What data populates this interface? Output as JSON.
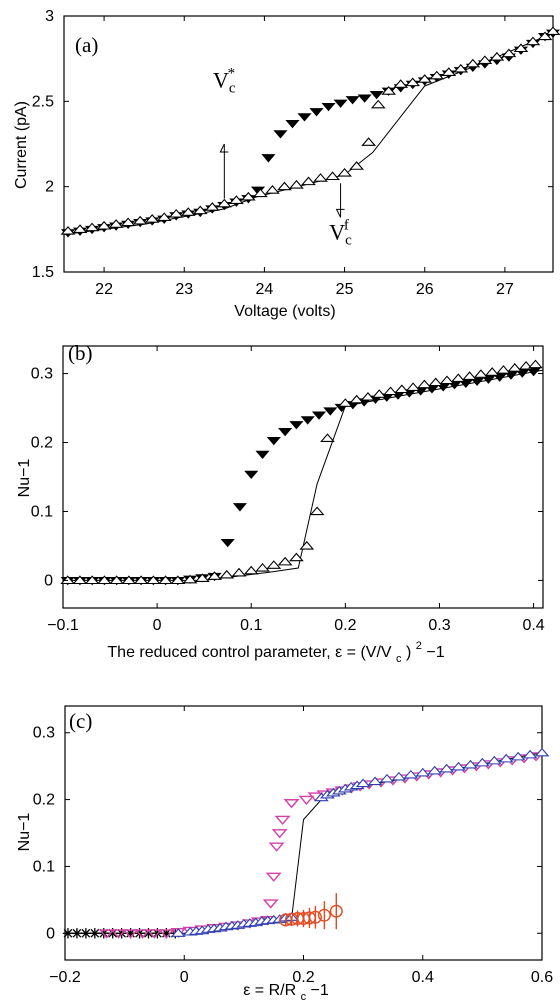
{
  "chart_data": [
    {
      "type": "scatter",
      "panel_label": "(a)",
      "xlabel": "Voltage (volts)",
      "ylabel": "Current (pA)",
      "xlim": [
        21.5,
        27.6
      ],
      "ylim": [
        1.5,
        3.0
      ],
      "x_ticks": [
        22,
        23,
        24,
        25,
        26,
        27
      ],
      "y_ticks": [
        1.5,
        2,
        2.5,
        3
      ],
      "x_tick_labels": [
        "22",
        "23",
        "24",
        "25",
        "26",
        "27"
      ],
      "y_tick_labels": [
        "1.5",
        "2",
        "2.5",
        "3"
      ],
      "grid": false,
      "annotations": [
        {
          "text_main": "V",
          "text_sub": "c",
          "text_sup": "*",
          "x": 23.5,
          "y": 2.58,
          "arrow_from": [
            23.5,
            1.93
          ],
          "arrow_to": [
            23.5,
            2.25
          ],
          "direction": "up"
        },
        {
          "text_main": "V",
          "text_sub": "c",
          "text_sup": "f",
          "x": 24.95,
          "y": 1.69,
          "arrow_from": [
            24.95,
            2.02
          ],
          "arrow_to": [
            24.95,
            1.82
          ],
          "direction": "down"
        }
      ],
      "series": [
        {
          "marker": "triangle-down-filled",
          "color": "#000000",
          "x": [
            21.55,
            21.7,
            21.85,
            22.0,
            22.15,
            22.3,
            22.45,
            22.6,
            22.75,
            22.9,
            23.05,
            23.2,
            23.35,
            23.5,
            23.65,
            23.8,
            23.92,
            24.05,
            24.2,
            24.35,
            24.5,
            24.65,
            24.8,
            24.95,
            25.1,
            25.25,
            25.4,
            25.55,
            25.7,
            25.85,
            26.0,
            26.15,
            26.3,
            26.45,
            26.6,
            26.75,
            26.9,
            27.05,
            27.2,
            27.35,
            27.5,
            27.6
          ],
          "y": [
            1.73,
            1.74,
            1.75,
            1.76,
            1.77,
            1.78,
            1.79,
            1.8,
            1.81,
            1.83,
            1.84,
            1.85,
            1.87,
            1.89,
            1.91,
            1.93,
            1.98,
            2.17,
            2.31,
            2.37,
            2.41,
            2.44,
            2.47,
            2.49,
            2.51,
            2.52,
            2.54,
            2.56,
            2.58,
            2.6,
            2.62,
            2.64,
            2.66,
            2.68,
            2.7,
            2.72,
            2.74,
            2.76,
            2.8,
            2.84,
            2.88,
            2.9
          ]
        },
        {
          "marker": "triangle-up-open",
          "color": "#000000",
          "x": [
            21.55,
            21.7,
            21.85,
            22.0,
            22.15,
            22.3,
            22.45,
            22.6,
            22.75,
            22.9,
            23.05,
            23.2,
            23.35,
            23.5,
            23.65,
            23.8,
            23.95,
            24.1,
            24.25,
            24.4,
            24.55,
            24.7,
            24.85,
            25.0,
            25.15,
            25.3,
            25.42,
            25.55,
            25.7,
            25.85,
            26.0,
            26.15,
            26.3,
            26.45,
            26.6,
            26.75,
            26.9,
            27.05,
            27.2,
            27.35,
            27.5,
            27.6
          ],
          "y": [
            1.74,
            1.75,
            1.76,
            1.77,
            1.78,
            1.79,
            1.8,
            1.81,
            1.82,
            1.84,
            1.85,
            1.86,
            1.88,
            1.9,
            1.92,
            1.94,
            1.96,
            1.98,
            2.0,
            2.01,
            2.03,
            2.05,
            2.06,
            2.08,
            2.12,
            2.26,
            2.48,
            2.56,
            2.6,
            2.61,
            2.63,
            2.65,
            2.67,
            2.69,
            2.72,
            2.74,
            2.76,
            2.78,
            2.81,
            2.85,
            2.88,
            2.91
          ]
        }
      ],
      "trend_line": {
        "x": [
          21.5,
          22.5,
          23.5,
          23.9,
          24.5,
          25.0,
          25.35,
          26.0,
          26.7,
          27.6
        ],
        "y": [
          1.72,
          1.78,
          1.87,
          1.94,
          2.01,
          2.07,
          2.2,
          2.59,
          2.72,
          2.9
        ]
      }
    },
    {
      "type": "scatter",
      "panel_label": "(b)",
      "xlabel_text": "The reduced control parameter, ε = (V/V",
      "xlabel_sub": "c",
      "xlabel_close": ")",
      "xlabel_sup": "2",
      "xlabel_tail": "−1",
      "ylabel": "Nu−1",
      "xlim": [
        -0.1,
        0.41
      ],
      "ylim": [
        -0.04,
        0.34
      ],
      "x_ticks": [
        -0.1,
        0,
        0.1,
        0.2,
        0.3,
        0.4
      ],
      "y_ticks": [
        0,
        0.1,
        0.2,
        0.3
      ],
      "x_tick_labels": [
        "−0.1",
        "0",
        "0.1",
        "0.2",
        "0.3",
        "0.4"
      ],
      "y_tick_labels": [
        "0",
        "0.1",
        "0.2",
        "0.3"
      ],
      "grid": false,
      "series": [
        {
          "marker": "triangle-down-filled",
          "color": "#000000",
          "x": [
            -0.095,
            -0.082,
            -0.069,
            -0.056,
            -0.043,
            -0.03,
            -0.017,
            -0.004,
            0.009,
            0.022,
            0.035,
            0.048,
            0.061,
            0.075,
            0.088,
            0.1,
            0.112,
            0.124,
            0.136,
            0.148,
            0.16,
            0.172,
            0.184,
            0.196,
            0.208,
            0.22,
            0.232,
            0.244,
            0.256,
            0.268,
            0.28,
            0.292,
            0.304,
            0.316,
            0.328,
            0.34,
            0.352,
            0.364,
            0.376,
            0.388,
            0.4
          ],
          "y": [
            0.0,
            0.0,
            0.0,
            0.0,
            0.0,
            0.0,
            0.0,
            0.0,
            0.0,
            0.0,
            0.002,
            0.004,
            0.006,
            0.055,
            0.107,
            0.154,
            0.183,
            0.203,
            0.216,
            0.226,
            0.233,
            0.24,
            0.246,
            0.251,
            0.255,
            0.259,
            0.263,
            0.266,
            0.269,
            0.272,
            0.275,
            0.278,
            0.281,
            0.284,
            0.286,
            0.289,
            0.292,
            0.295,
            0.298,
            0.301,
            0.303
          ]
        },
        {
          "marker": "triangle-up-open",
          "color": "#000000",
          "x": [
            -0.095,
            -0.082,
            -0.069,
            -0.056,
            -0.043,
            -0.03,
            -0.017,
            -0.004,
            0.009,
            0.022,
            0.035,
            0.048,
            0.061,
            0.074,
            0.087,
            0.1,
            0.112,
            0.124,
            0.136,
            0.148,
            0.159,
            0.17,
            0.181,
            0.2,
            0.212,
            0.224,
            0.236,
            0.248,
            0.26,
            0.272,
            0.284,
            0.296,
            0.308,
            0.32,
            0.332,
            0.344,
            0.356,
            0.368,
            0.38,
            0.392,
            0.402
          ],
          "y": [
            0.0,
            0.0,
            0.0,
            0.0,
            0.0,
            0.0,
            0.0,
            0.0,
            0.0,
            0.0,
            0.001,
            0.003,
            0.006,
            0.008,
            0.011,
            0.014,
            0.018,
            0.022,
            0.027,
            0.033,
            0.05,
            0.1,
            0.206,
            0.257,
            0.262,
            0.266,
            0.27,
            0.274,
            0.277,
            0.28,
            0.284,
            0.287,
            0.29,
            0.293,
            0.296,
            0.299,
            0.302,
            0.305,
            0.308,
            0.311,
            0.313
          ]
        }
      ],
      "trend_line": {
        "x": [
          -0.1,
          0.05,
          0.12,
          0.15,
          0.17,
          0.2,
          0.26,
          0.33,
          0.41
        ],
        "y": [
          0.0,
          0.0,
          0.012,
          0.018,
          0.14,
          0.253,
          0.268,
          0.285,
          0.305
        ]
      }
    },
    {
      "type": "scatter",
      "panel_label": "(c)",
      "xlabel_text": "ε = R/R",
      "xlabel_sub": "c",
      "xlabel_tail": " −1",
      "ylabel": "Nu−1",
      "xlim": [
        -0.2,
        0.6
      ],
      "ylim": [
        -0.04,
        0.34
      ],
      "x_ticks": [
        -0.2,
        0,
        0.2,
        0.4,
        0.6
      ],
      "y_ticks": [
        0,
        0.1,
        0.2,
        0.3
      ],
      "x_tick_labels": [
        "−0.2",
        "0",
        "0.2",
        "0.4",
        "0.6"
      ],
      "y_tick_labels": [
        "0",
        "0.1",
        "0.2",
        "0.3"
      ],
      "grid": false,
      "series": [
        {
          "marker": "asterisk",
          "color": "#000000",
          "x": [
            -0.195,
            -0.18,
            -0.165,
            -0.15,
            -0.135,
            -0.12,
            -0.105,
            -0.09,
            -0.075,
            -0.06,
            -0.045,
            -0.03,
            -0.015
          ],
          "y": [
            0.0,
            0.0,
            0.0,
            0.0,
            0.0,
            0.0,
            0.0,
            0.0,
            0.0,
            0.0,
            0.0,
            0.0,
            0.0
          ]
        },
        {
          "marker": "triangle-down-open",
          "color": "#d63fa6",
          "x": [
            -0.13,
            -0.11,
            -0.09,
            -0.07,
            -0.05,
            -0.03,
            -0.01,
            0.01,
            0.03,
            0.05,
            0.07,
            0.09,
            0.11,
            0.125,
            0.14,
            0.145,
            0.15,
            0.155,
            0.16,
            0.165,
            0.18,
            0.205,
            0.22,
            0.235,
            0.25,
            0.265,
            0.28,
            0.295,
            0.31,
            0.33,
            0.35,
            0.37,
            0.39,
            0.41,
            0.43,
            0.45,
            0.47,
            0.49,
            0.51,
            0.53,
            0.55,
            0.57,
            0.59
          ],
          "y": [
            0.0,
            0.0,
            0.0,
            0.0,
            0.0,
            0.0,
            0.002,
            0.004,
            0.006,
            0.008,
            0.01,
            0.012,
            0.015,
            0.018,
            0.02,
            0.045,
            0.085,
            0.13,
            0.15,
            0.17,
            0.195,
            0.2,
            0.205,
            0.208,
            0.211,
            0.214,
            0.217,
            0.22,
            0.223,
            0.226,
            0.229,
            0.232,
            0.235,
            0.238,
            0.241,
            0.244,
            0.247,
            0.25,
            0.253,
            0.256,
            0.259,
            0.262,
            0.265
          ]
        },
        {
          "marker": "triangle-up-open",
          "color": "#2f3fb0",
          "x": [
            -0.01,
            0.01,
            0.02,
            0.03,
            0.04,
            0.05,
            0.06,
            0.07,
            0.08,
            0.09,
            0.1,
            0.11,
            0.12,
            0.13,
            0.14,
            0.15,
            0.16,
            0.17,
            0.18,
            0.23,
            0.24,
            0.25,
            0.26,
            0.27,
            0.28,
            0.29,
            0.3,
            0.32,
            0.34,
            0.36,
            0.38,
            0.4,
            0.42,
            0.44,
            0.46,
            0.48,
            0.5,
            0.52,
            0.54,
            0.56,
            0.58,
            0.6
          ],
          "y": [
            0.0,
            0.002,
            0.003,
            0.004,
            0.006,
            0.007,
            0.008,
            0.01,
            0.011,
            0.012,
            0.014,
            0.015,
            0.016,
            0.018,
            0.019,
            0.02,
            0.021,
            0.023,
            0.024,
            0.203,
            0.207,
            0.21,
            0.213,
            0.216,
            0.219,
            0.221,
            0.224,
            0.227,
            0.231,
            0.234,
            0.237,
            0.24,
            0.243,
            0.246,
            0.249,
            0.252,
            0.255,
            0.258,
            0.261,
            0.264,
            0.267,
            0.27
          ]
        },
        {
          "marker": "circle-open-errorbar",
          "color": "#e34a1f",
          "x": [
            0.17,
            0.18,
            0.19,
            0.2,
            0.21,
            0.22,
            0.235,
            0.255
          ],
          "y": [
            0.02,
            0.021,
            0.022,
            0.022,
            0.023,
            0.024,
            0.027,
            0.033
          ],
          "yerr": [
            0.01,
            0.01,
            0.012,
            0.013,
            0.015,
            0.017,
            0.021,
            0.027
          ]
        }
      ],
      "trend_line": {
        "x": [
          -0.2,
          0.0,
          0.12,
          0.18,
          0.2,
          0.23,
          0.3,
          0.45,
          0.6
        ],
        "y": [
          0.0,
          0.0,
          0.015,
          0.022,
          0.17,
          0.2,
          0.22,
          0.245,
          0.27
        ]
      }
    }
  ]
}
